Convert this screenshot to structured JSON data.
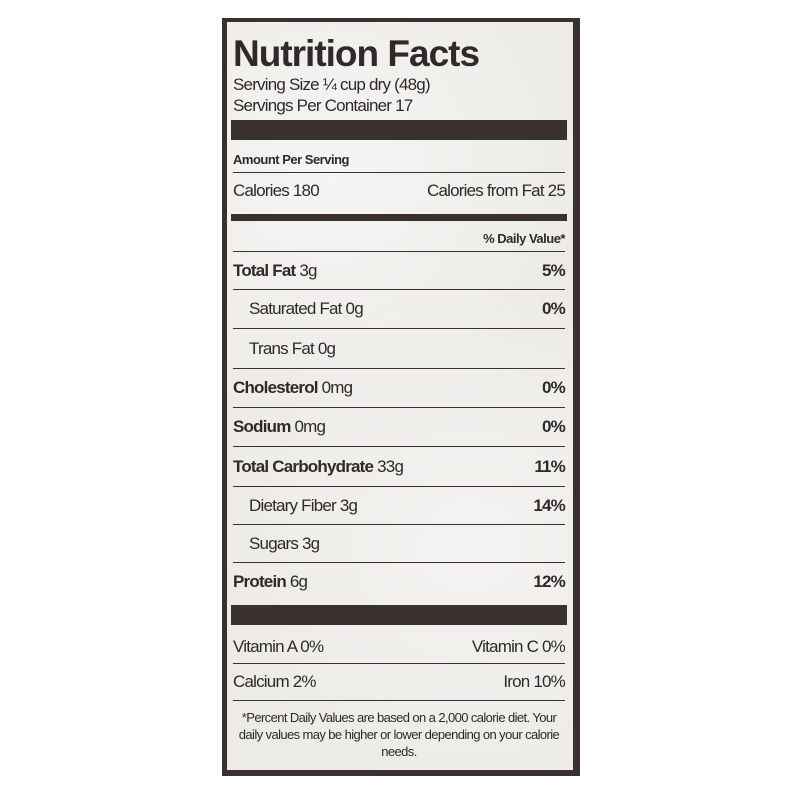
{
  "title": "Nutrition Facts",
  "serving_size": "Serving Size ¼ cup dry (48g)",
  "servings_per_container": "Servings Per Container 17",
  "amount_per_serving": "Amount Per Serving",
  "calories": "Calories 180",
  "calories_from_fat": "Calories from Fat 25",
  "daily_value_header": "% Daily Value*",
  "nutrients": [
    {
      "name": "Total Fat",
      "amount": "3g",
      "dv": "5%"
    },
    {
      "name": "Saturated Fat",
      "amount": "0g",
      "dv": "0%"
    },
    {
      "name": "Trans Fat",
      "amount": "0g",
      "dv": ""
    },
    {
      "name": "Cholesterol",
      "amount": "0mg",
      "dv": "0%"
    },
    {
      "name": "Sodium",
      "amount": "0mg",
      "dv": "0%"
    },
    {
      "name": "Total Carbohydrate",
      "amount": "33g",
      "dv": "11%"
    },
    {
      "name": "Dietary Fiber",
      "amount": "3g",
      "dv": "14%"
    },
    {
      "name": "Sugars",
      "amount": "3g",
      "dv": ""
    },
    {
      "name": "Protein",
      "amount": "6g",
      "dv": "12%"
    }
  ],
  "vitamins": [
    {
      "left": "Vitamin A  0%",
      "right": "Vitamin C  0%"
    },
    {
      "left": "Calcium  2%",
      "right": "Iron  10%"
    }
  ],
  "footnote": "*Percent Daily Values are based on a 2,000 calorie diet. Your daily values may be higher or lower depending on your calorie needs."
}
